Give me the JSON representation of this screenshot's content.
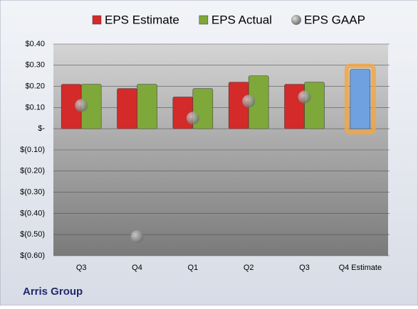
{
  "chart_data": {
    "type": "bar",
    "title": "Arris Group",
    "categories": [
      "Q3",
      "Q4",
      "Q1",
      "Q2",
      "Q3",
      "Q4 Estimate"
    ],
    "series": [
      {
        "name": "EPS Estimate",
        "color": "#d42a2a",
        "point_colors": [
          "#d42a2a",
          "#d42a2a",
          "#d42a2a",
          "#d42a2a",
          "#d42a2a",
          "#6fa1e0"
        ],
        "values": [
          0.21,
          0.19,
          0.15,
          0.22,
          0.21,
          0.28
        ]
      },
      {
        "name": "EPS Actual",
        "color": "#7ea83a",
        "values": [
          0.21,
          0.21,
          0.19,
          0.25,
          0.22,
          null
        ]
      },
      {
        "name": "EPS GAAP",
        "color": "#9a9a9a",
        "marker": "bubble",
        "values": [
          0.11,
          -0.51,
          0.05,
          0.13,
          0.15,
          null
        ]
      }
    ],
    "ylim": [
      -0.6,
      0.4
    ],
    "yticks": [
      {
        "value": 0.4,
        "label": "$0.40"
      },
      {
        "value": 0.3,
        "label": "$0.30"
      },
      {
        "value": 0.2,
        "label": "$0.20"
      },
      {
        "value": 0.1,
        "label": "$0.10"
      },
      {
        "value": 0,
        "label": "$-"
      },
      {
        "value": -0.1,
        "label": "$(0.10)"
      },
      {
        "value": -0.2,
        "label": "$(0.20)"
      },
      {
        "value": -0.3,
        "label": "$(0.30)"
      },
      {
        "value": -0.4,
        "label": "$(0.40)"
      },
      {
        "value": -0.5,
        "label": "$(0.50)"
      },
      {
        "value": -0.6,
        "label": "$(0.60)"
      }
    ],
    "grid": true,
    "legend": "top"
  }
}
